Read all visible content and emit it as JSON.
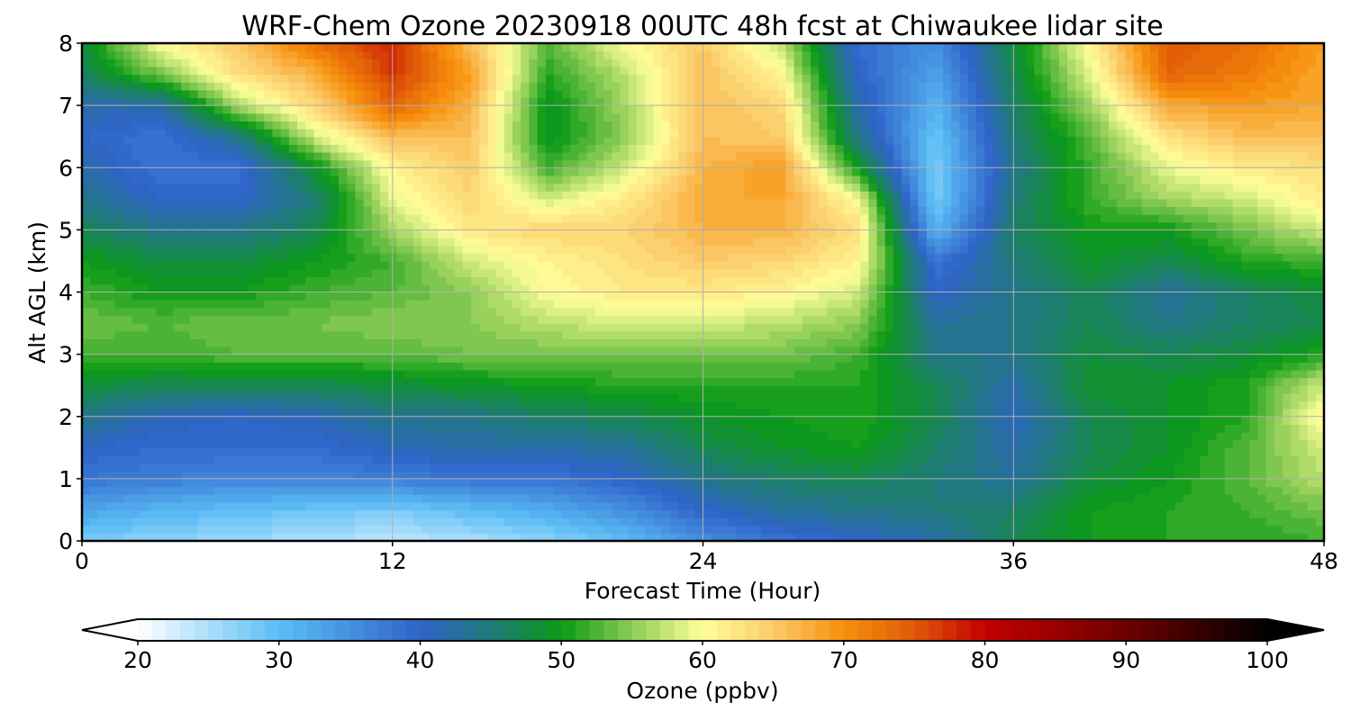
{
  "chart_data": {
    "type": "heatmap",
    "title": "WRF-Chem Ozone  20230918 00UTC 48h fcst at Chiwaukee lidar site",
    "xlabel": "Forecast Time (Hour)",
    "ylabel": "Alt AGL (km)",
    "xlim": [
      0,
      48
    ],
    "ylim": [
      0,
      8
    ],
    "x_ticks": [
      0,
      12,
      24,
      36,
      48
    ],
    "y_ticks": [
      0,
      1,
      2,
      3,
      4,
      5,
      6,
      7,
      8
    ],
    "grid": true,
    "colorbar": {
      "label": "Ozone  (ppbv)",
      "orientation": "horizontal",
      "placement": "bottom",
      "min": 20,
      "max": 100,
      "ticks": [
        20,
        30,
        40,
        50,
        60,
        70,
        80,
        90,
        100
      ],
      "extend": "both",
      "colors": [
        {
          "v": 20,
          "c": "#ffffff"
        },
        {
          "v": 30,
          "c": "#5bbdf5"
        },
        {
          "v": 40,
          "c": "#2f63c9"
        },
        {
          "v": 45,
          "c": "#1f7a78"
        },
        {
          "v": 50,
          "c": "#0a9a16"
        },
        {
          "v": 55,
          "c": "#8ccc55"
        },
        {
          "v": 60,
          "c": "#ffff9a"
        },
        {
          "v": 65,
          "c": "#fbcb6a"
        },
        {
          "v": 70,
          "c": "#f7900c"
        },
        {
          "v": 75,
          "c": "#e05a08"
        },
        {
          "v": 80,
          "c": "#c40000"
        },
        {
          "v": 90,
          "c": "#6e0000"
        },
        {
          "v": 100,
          "c": "#000000"
        }
      ]
    },
    "x": [
      0,
      3,
      6,
      9,
      12,
      15,
      18,
      21,
      24,
      27,
      30,
      33,
      36,
      39,
      42,
      45,
      48
    ],
    "y": [
      0,
      0.5,
      1,
      1.5,
      2,
      2.5,
      3,
      3.5,
      4,
      4.5,
      5,
      5.5,
      6,
      6.5,
      7,
      7.5,
      8
    ],
    "z": [
      [
        28,
        27,
        26,
        25,
        24,
        25,
        27,
        30,
        35,
        38,
        40,
        42,
        47,
        50,
        51,
        51,
        52
      ],
      [
        33,
        31,
        30,
        29,
        28,
        30,
        32,
        35,
        40,
        43,
        44,
        45,
        46,
        50,
        51,
        52,
        54
      ],
      [
        38,
        37,
        36,
        36,
        37,
        38,
        38,
        40,
        44,
        46,
        47,
        45,
        43,
        48,
        50,
        53,
        57
      ],
      [
        40,
        39,
        39,
        39,
        41,
        42,
        42,
        43,
        47,
        49,
        50,
        46,
        42,
        47,
        49,
        53,
        58
      ],
      [
        44,
        41,
        40,
        41,
        44,
        44,
        46,
        47,
        49,
        50,
        51,
        47,
        41,
        47,
        49,
        51,
        61
      ],
      [
        48,
        47,
        47,
        47,
        48,
        49,
        50,
        51,
        51,
        51,
        51,
        47,
        42,
        49,
        49,
        51,
        58
      ],
      [
        52,
        52,
        53,
        53,
        53,
        54,
        54,
        54,
        54,
        54,
        52,
        44,
        44,
        48,
        47,
        48,
        51
      ],
      [
        54,
        53,
        54,
        54,
        55,
        55,
        57,
        58,
        58,
        57,
        55,
        43,
        44,
        47,
        44,
        46,
        47
      ],
      [
        52,
        50,
        50,
        52,
        53,
        55,
        60,
        62,
        62,
        61,
        58,
        40,
        44,
        47,
        43,
        46,
        48
      ],
      [
        50,
        48,
        48,
        50,
        52,
        58,
        61,
        63,
        65,
        64,
        61,
        38,
        45,
        49,
        47,
        51,
        52
      ],
      [
        47,
        44,
        44,
        47,
        56,
        62,
        64,
        64,
        67,
        67,
        63,
        31,
        46,
        50,
        50,
        54,
        58
      ],
      [
        44,
        40,
        40,
        45,
        59,
        64,
        58,
        62,
        68,
        68,
        60,
        28,
        45,
        52,
        56,
        58,
        62
      ],
      [
        42,
        38,
        38,
        49,
        61,
        65,
        52,
        58,
        67,
        69,
        50,
        28,
        44,
        52,
        59,
        62,
        63
      ],
      [
        40,
        38,
        44,
        58,
        66,
        66,
        49,
        55,
        66,
        65,
        44,
        29,
        45,
        53,
        63,
        66,
        66
      ],
      [
        42,
        42,
        56,
        64,
        74,
        67,
        49,
        56,
        66,
        64,
        42,
        31,
        46,
        56,
        68,
        69,
        68
      ],
      [
        46,
        54,
        63,
        67,
        77,
        69,
        51,
        57,
        66,
        61,
        40,
        33,
        47,
        59,
        74,
        72,
        68
      ],
      [
        48,
        60,
        65,
        73,
        78,
        66,
        53,
        60,
        65,
        57,
        39,
        35,
        48,
        61,
        75,
        73,
        69
      ]
    ]
  }
}
